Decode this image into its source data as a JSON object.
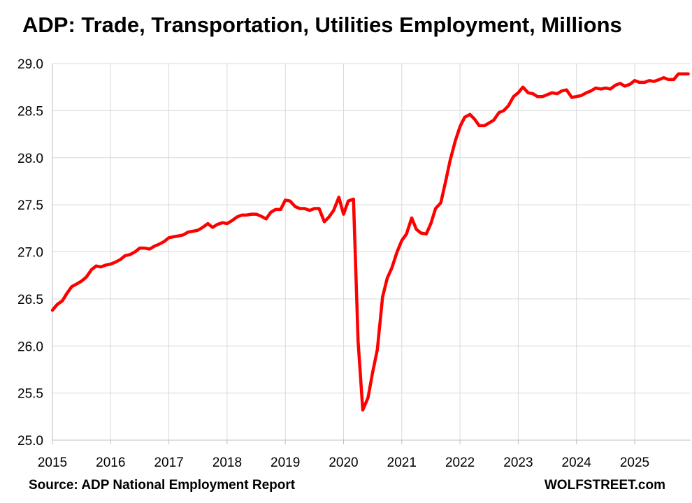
{
  "colors": {
    "line": "#ff0000",
    "grid": "#d9d9d9",
    "axis": "#bfbfbf",
    "text": "#000000"
  },
  "footer": {
    "source": "Source: ADP National Employment Report",
    "brand": "WOLFSTREET.com"
  },
  "chart_data": {
    "type": "line",
    "title": "ADP: Trade, Transportation, Utilities Employment, Millions",
    "xlabel": "",
    "ylabel": "",
    "xlim": [
      2015.0,
      2025.92
    ],
    "ylim": [
      25.0,
      29.0
    ],
    "grid": true,
    "x_ticks": [
      "2015",
      "2016",
      "2017",
      "2018",
      "2019",
      "2020",
      "2021",
      "2022",
      "2023",
      "2024",
      "2025"
    ],
    "y_ticks": [
      "25.0",
      "25.5",
      "26.0",
      "26.5",
      "27.0",
      "27.5",
      "28.0",
      "28.5",
      "29.0"
    ],
    "series": [
      {
        "points": [
          [
            2015.0,
            26.38
          ],
          [
            2015.08,
            26.44
          ],
          [
            2015.17,
            26.48
          ],
          [
            2015.25,
            26.56
          ],
          [
            2015.33,
            26.63
          ],
          [
            2015.42,
            26.66
          ],
          [
            2015.5,
            26.69
          ],
          [
            2015.58,
            26.73
          ],
          [
            2015.67,
            26.81
          ],
          [
            2015.75,
            26.85
          ],
          [
            2015.83,
            26.84
          ],
          [
            2015.92,
            26.86
          ],
          [
            2016.0,
            26.87
          ],
          [
            2016.08,
            26.89
          ],
          [
            2016.17,
            26.92
          ],
          [
            2016.25,
            26.96
          ],
          [
            2016.33,
            26.97
          ],
          [
            2016.42,
            27.0
          ],
          [
            2016.5,
            27.04
          ],
          [
            2016.58,
            27.04
          ],
          [
            2016.67,
            27.03
          ],
          [
            2016.75,
            27.06
          ],
          [
            2016.83,
            27.08
          ],
          [
            2016.92,
            27.11
          ],
          [
            2017.0,
            27.15
          ],
          [
            2017.08,
            27.16
          ],
          [
            2017.17,
            27.17
          ],
          [
            2017.25,
            27.18
          ],
          [
            2017.33,
            27.21
          ],
          [
            2017.42,
            27.22
          ],
          [
            2017.5,
            27.23
          ],
          [
            2017.58,
            27.26
          ],
          [
            2017.67,
            27.3
          ],
          [
            2017.75,
            27.26
          ],
          [
            2017.83,
            27.29
          ],
          [
            2017.92,
            27.31
          ],
          [
            2018.0,
            27.3
          ],
          [
            2018.08,
            27.33
          ],
          [
            2018.17,
            27.37
          ],
          [
            2018.25,
            27.39
          ],
          [
            2018.33,
            27.39
          ],
          [
            2018.42,
            27.4
          ],
          [
            2018.5,
            27.4
          ],
          [
            2018.58,
            27.38
          ],
          [
            2018.67,
            27.35
          ],
          [
            2018.75,
            27.42
          ],
          [
            2018.83,
            27.45
          ],
          [
            2018.92,
            27.45
          ],
          [
            2019.0,
            27.55
          ],
          [
            2019.08,
            27.54
          ],
          [
            2019.17,
            27.48
          ],
          [
            2019.25,
            27.46
          ],
          [
            2019.33,
            27.46
          ],
          [
            2019.42,
            27.44
          ],
          [
            2019.5,
            27.46
          ],
          [
            2019.58,
            27.46
          ],
          [
            2019.67,
            27.32
          ],
          [
            2019.75,
            27.37
          ],
          [
            2019.83,
            27.44
          ],
          [
            2019.92,
            27.58
          ],
          [
            2020.0,
            27.4
          ],
          [
            2020.08,
            27.54
          ],
          [
            2020.17,
            27.56
          ],
          [
            2020.25,
            26.05
          ],
          [
            2020.33,
            25.32
          ],
          [
            2020.42,
            25.45
          ],
          [
            2020.5,
            25.72
          ],
          [
            2020.58,
            25.96
          ],
          [
            2020.67,
            26.52
          ],
          [
            2020.75,
            26.72
          ],
          [
            2020.83,
            26.83
          ],
          [
            2020.92,
            27.0
          ],
          [
            2021.0,
            27.12
          ],
          [
            2021.08,
            27.19
          ],
          [
            2021.17,
            27.36
          ],
          [
            2021.25,
            27.24
          ],
          [
            2021.33,
            27.2
          ],
          [
            2021.42,
            27.19
          ],
          [
            2021.5,
            27.3
          ],
          [
            2021.58,
            27.46
          ],
          [
            2021.67,
            27.52
          ],
          [
            2021.75,
            27.74
          ],
          [
            2021.83,
            27.97
          ],
          [
            2021.92,
            28.18
          ],
          [
            2022.0,
            28.33
          ],
          [
            2022.08,
            28.43
          ],
          [
            2022.17,
            28.46
          ],
          [
            2022.25,
            28.41
          ],
          [
            2022.33,
            28.34
          ],
          [
            2022.42,
            28.34
          ],
          [
            2022.5,
            28.37
          ],
          [
            2022.58,
            28.4
          ],
          [
            2022.67,
            28.48
          ],
          [
            2022.75,
            28.5
          ],
          [
            2022.83,
            28.55
          ],
          [
            2022.92,
            28.65
          ],
          [
            2023.0,
            28.69
          ],
          [
            2023.08,
            28.75
          ],
          [
            2023.17,
            28.69
          ],
          [
            2023.25,
            28.68
          ],
          [
            2023.33,
            28.65
          ],
          [
            2023.42,
            28.65
          ],
          [
            2023.5,
            28.67
          ],
          [
            2023.58,
            28.69
          ],
          [
            2023.67,
            28.68
          ],
          [
            2023.75,
            28.71
          ],
          [
            2023.83,
            28.72
          ],
          [
            2023.92,
            28.64
          ],
          [
            2024.0,
            28.65
          ],
          [
            2024.08,
            28.66
          ],
          [
            2024.17,
            28.69
          ],
          [
            2024.25,
            28.71
          ],
          [
            2024.33,
            28.74
          ],
          [
            2024.42,
            28.73
          ],
          [
            2024.5,
            28.74
          ],
          [
            2024.58,
            28.73
          ],
          [
            2024.67,
            28.77
          ],
          [
            2024.75,
            28.79
          ],
          [
            2024.83,
            28.76
          ],
          [
            2024.92,
            28.78
          ],
          [
            2025.0,
            28.82
          ],
          [
            2025.08,
            28.8
          ],
          [
            2025.17,
            28.8
          ],
          [
            2025.25,
            28.82
          ],
          [
            2025.33,
            28.81
          ],
          [
            2025.42,
            28.83
          ],
          [
            2025.5,
            28.85
          ],
          [
            2025.58,
            28.83
          ],
          [
            2025.67,
            28.83
          ],
          [
            2025.75,
            28.89
          ],
          [
            2025.83,
            28.89
          ],
          [
            2025.92,
            28.89
          ]
        ]
      }
    ]
  }
}
